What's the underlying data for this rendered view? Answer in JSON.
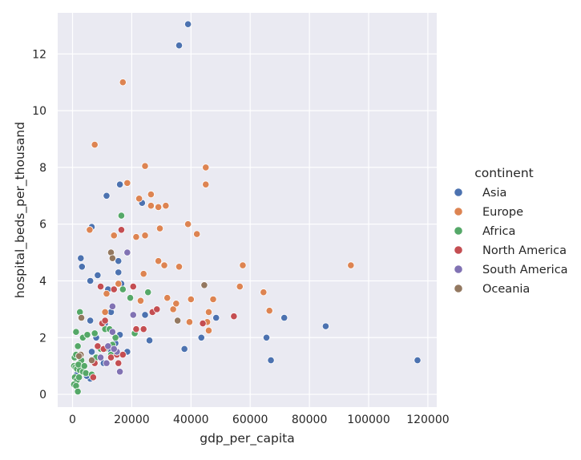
{
  "chart_data": {
    "type": "scatter",
    "xlabel": "gdp_per_capita",
    "ylabel": "hospital_beds_per_thousand",
    "xlim": [
      -5000,
      123000
    ],
    "ylim": [
      -0.45,
      13.45
    ],
    "xticks": [
      0,
      20000,
      40000,
      60000,
      80000,
      100000,
      120000
    ],
    "yticks": [
      0,
      2,
      4,
      6,
      8,
      10,
      12
    ],
    "grid": true,
    "background": "#eaeaf2",
    "legend": {
      "title": "continent",
      "placement": "right"
    },
    "series": [
      {
        "name": "Asia",
        "color": "#4c72b0",
        "points": [
          [
            39000,
            13.05
          ],
          [
            36000,
            12.3
          ],
          [
            23500,
            6.75
          ],
          [
            16000,
            7.4
          ],
          [
            11500,
            7.0
          ],
          [
            6500,
            5.9
          ],
          [
            2800,
            4.8
          ],
          [
            3200,
            4.5
          ],
          [
            6000,
            4.0
          ],
          [
            8500,
            4.2
          ],
          [
            12000,
            3.7
          ],
          [
            15500,
            4.3
          ],
          [
            15500,
            4.7
          ],
          [
            13000,
            2.9
          ],
          [
            16000,
            2.1
          ],
          [
            18500,
            1.5
          ],
          [
            24500,
            2.8
          ],
          [
            26000,
            1.9
          ],
          [
            37800,
            1.6
          ],
          [
            43500,
            2.0
          ],
          [
            48500,
            2.7
          ],
          [
            65500,
            2.0
          ],
          [
            67000,
            1.2
          ],
          [
            71500,
            2.7
          ],
          [
            85500,
            2.4
          ],
          [
            116500,
            1.2
          ],
          [
            6000,
            2.6
          ],
          [
            6500,
            1.5
          ],
          [
            6000,
            0.55
          ],
          [
            4800,
            0.65
          ],
          [
            3500,
            0.8
          ],
          [
            2200,
            1.0
          ],
          [
            1500,
            0.7
          ],
          [
            10500,
            1.1
          ],
          [
            13000,
            1.5
          ],
          [
            14500,
            1.8
          ],
          [
            8000,
            2.0
          ],
          [
            11000,
            2.5
          ],
          [
            16500,
            3.9
          ]
        ]
      },
      {
        "name": "Europe",
        "color": "#dd8452",
        "points": [
          [
            17000,
            11.0
          ],
          [
            7500,
            8.8
          ],
          [
            24500,
            8.05
          ],
          [
            45000,
            8.0
          ],
          [
            18500,
            7.45
          ],
          [
            45000,
            7.4
          ],
          [
            26500,
            7.05
          ],
          [
            22500,
            6.9
          ],
          [
            26500,
            6.65
          ],
          [
            29000,
            6.6
          ],
          [
            31500,
            6.65
          ],
          [
            39000,
            6.0
          ],
          [
            29500,
            5.85
          ],
          [
            42000,
            5.65
          ],
          [
            5800,
            5.8
          ],
          [
            14000,
            5.6
          ],
          [
            21500,
            5.55
          ],
          [
            24500,
            5.6
          ],
          [
            57500,
            4.55
          ],
          [
            94000,
            4.55
          ],
          [
            29000,
            4.7
          ],
          [
            31000,
            4.55
          ],
          [
            36000,
            4.5
          ],
          [
            24000,
            4.25
          ],
          [
            15500,
            3.9
          ],
          [
            11500,
            3.55
          ],
          [
            23000,
            3.3
          ],
          [
            32000,
            3.4
          ],
          [
            40000,
            3.35
          ],
          [
            47500,
            3.35
          ],
          [
            56500,
            3.8
          ],
          [
            64500,
            3.6
          ],
          [
            34000,
            3.0
          ],
          [
            46000,
            2.9
          ],
          [
            66500,
            2.95
          ],
          [
            39500,
            2.55
          ],
          [
            45500,
            2.55
          ],
          [
            46000,
            2.25
          ],
          [
            11000,
            2.9
          ],
          [
            35000,
            3.2
          ]
        ]
      },
      {
        "name": "Africa",
        "color": "#55a868",
        "points": [
          [
            16500,
            6.3
          ],
          [
            17000,
            3.7
          ],
          [
            19500,
            3.4
          ],
          [
            25500,
            3.6
          ],
          [
            21000,
            2.15
          ],
          [
            1200,
            2.2
          ],
          [
            2500,
            2.9
          ],
          [
            3500,
            2.0
          ],
          [
            5000,
            2.1
          ],
          [
            7500,
            2.15
          ],
          [
            11000,
            2.3
          ],
          [
            12500,
            2.3
          ],
          [
            9500,
            1.6
          ],
          [
            11000,
            1.6
          ],
          [
            13500,
            1.75
          ],
          [
            1800,
            1.7
          ],
          [
            700,
            1.3
          ],
          [
            1200,
            1.4
          ],
          [
            2500,
            1.3
          ],
          [
            3000,
            1.2
          ],
          [
            500,
            1.0
          ],
          [
            1000,
            0.95
          ],
          [
            1500,
            0.9
          ],
          [
            2500,
            0.85
          ],
          [
            3500,
            0.8
          ],
          [
            800,
            0.6
          ],
          [
            1500,
            0.5
          ],
          [
            2200,
            0.6
          ],
          [
            500,
            0.35
          ],
          [
            1200,
            0.3
          ],
          [
            1800,
            0.1
          ],
          [
            4500,
            0.75
          ],
          [
            6500,
            0.7
          ],
          [
            8000,
            1.3
          ],
          [
            13000,
            1.4
          ],
          [
            14500,
            2.0
          ],
          [
            2000,
            1.05
          ],
          [
            4000,
            1.0
          ]
        ]
      },
      {
        "name": "North America",
        "color": "#c44e52",
        "points": [
          [
            16500,
            5.8
          ],
          [
            9500,
            3.8
          ],
          [
            14000,
            3.7
          ],
          [
            20500,
            3.8
          ],
          [
            27000,
            2.9
          ],
          [
            28500,
            3.0
          ],
          [
            21500,
            2.3
          ],
          [
            24000,
            2.3
          ],
          [
            44000,
            2.5
          ],
          [
            54500,
            2.75
          ],
          [
            10000,
            2.5
          ],
          [
            11000,
            2.6
          ],
          [
            8500,
            1.7
          ],
          [
            10500,
            1.6
          ],
          [
            13000,
            1.3
          ],
          [
            15000,
            1.4
          ],
          [
            17000,
            1.4
          ],
          [
            15500,
            1.1
          ],
          [
            7500,
            1.1
          ],
          [
            7000,
            0.6
          ]
        ]
      },
      {
        "name": "South America",
        "color": "#8172b3",
        "points": [
          [
            18500,
            5.0
          ],
          [
            13500,
            3.1
          ],
          [
            20500,
            2.8
          ],
          [
            9500,
            1.3
          ],
          [
            11500,
            1.1
          ],
          [
            13500,
            2.2
          ],
          [
            15000,
            1.5
          ],
          [
            16000,
            0.8
          ],
          [
            12000,
            1.7
          ],
          [
            14000,
            1.6
          ]
        ]
      },
      {
        "name": "Oceania",
        "color": "#937860",
        "points": [
          [
            13000,
            5.0
          ],
          [
            13500,
            4.8
          ],
          [
            44500,
            3.85
          ],
          [
            35500,
            2.6
          ],
          [
            3000,
            2.7
          ],
          [
            2800,
            1.4
          ],
          [
            2200,
            1.35
          ],
          [
            6500,
            1.2
          ]
        ]
      }
    ]
  }
}
